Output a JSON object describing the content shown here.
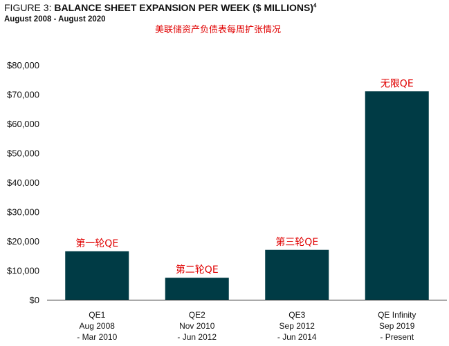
{
  "header": {
    "title_prefix": "FIGURE 3: ",
    "title_main": "BALANCE SHEET EXPANSION PER WEEK ($ MILLIONS)",
    "title_sup": "4",
    "subtitle": "August 2008 - August 2020",
    "annotation_cn": "美联储资产负债表每周扩张情况"
  },
  "colors": {
    "bar": "#003B45",
    "annotation": "#e00000",
    "axis": "#222222"
  },
  "chart_data": {
    "type": "bar",
    "title": "BALANCE SHEET EXPANSION PER WEEK ($ MILLIONS)",
    "subtitle": "August 2008 - August 2020",
    "xlabel": "",
    "ylabel": "",
    "ylim": [
      0,
      80000
    ],
    "yticks": [
      0,
      10000,
      20000,
      30000,
      40000,
      50000,
      60000,
      70000,
      80000
    ],
    "ytick_labels": [
      "$0",
      "$10,000",
      "$20,000",
      "$30,000",
      "$40,000",
      "$50,000",
      "$60,000",
      "$70,000",
      "$80,000"
    ],
    "grid": false,
    "categories": [
      [
        "QE1",
        "Aug 2008",
        "- Mar 2010"
      ],
      [
        "QE2",
        "Nov 2010",
        "- Jun 2012"
      ],
      [
        "QE3",
        "Sep 2012",
        "- Jun 2014"
      ],
      [
        "QE Infinity",
        "Sep 2019",
        "- Present"
      ]
    ],
    "values": [
      16500,
      7500,
      17000,
      71000
    ],
    "bar_annotations": [
      "第一轮QE",
      "第二轮QE",
      "第三轮QE",
      "无限QE"
    ]
  }
}
